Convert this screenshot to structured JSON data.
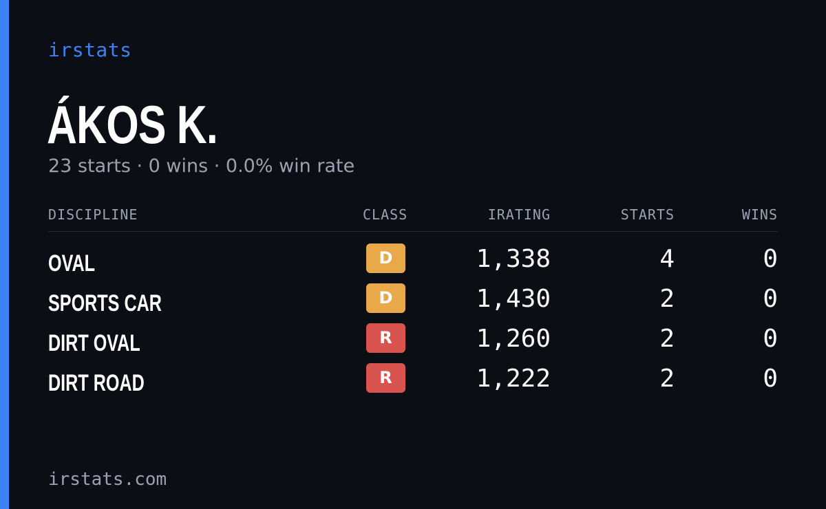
{
  "brand": "irstats",
  "driver": {
    "name": "ÁKOS K.",
    "summary": "23 starts · 0 wins · 0.0% win rate"
  },
  "table": {
    "headers": [
      "DISCIPLINE",
      "CLASS",
      "IRATING",
      "STARTS",
      "WINS"
    ],
    "rows": [
      {
        "discipline": "OVAL",
        "class": "D",
        "class_color": "#e9a94a",
        "irating": "1,338",
        "starts": "4",
        "wins": "0"
      },
      {
        "discipline": "SPORTS CAR",
        "class": "D",
        "class_color": "#e9a94a",
        "irating": "1,430",
        "starts": "2",
        "wins": "0"
      },
      {
        "discipline": "DIRT OVAL",
        "class": "R",
        "class_color": "#d9534f",
        "irating": "1,260",
        "starts": "2",
        "wins": "0"
      },
      {
        "discipline": "DIRT ROAD",
        "class": "R",
        "class_color": "#d9534f",
        "irating": "1,222",
        "starts": "2",
        "wins": "0"
      }
    ]
  },
  "footer": "irstats.com",
  "colors": {
    "accent": "#3b82f6",
    "background": "#0b0e14"
  }
}
